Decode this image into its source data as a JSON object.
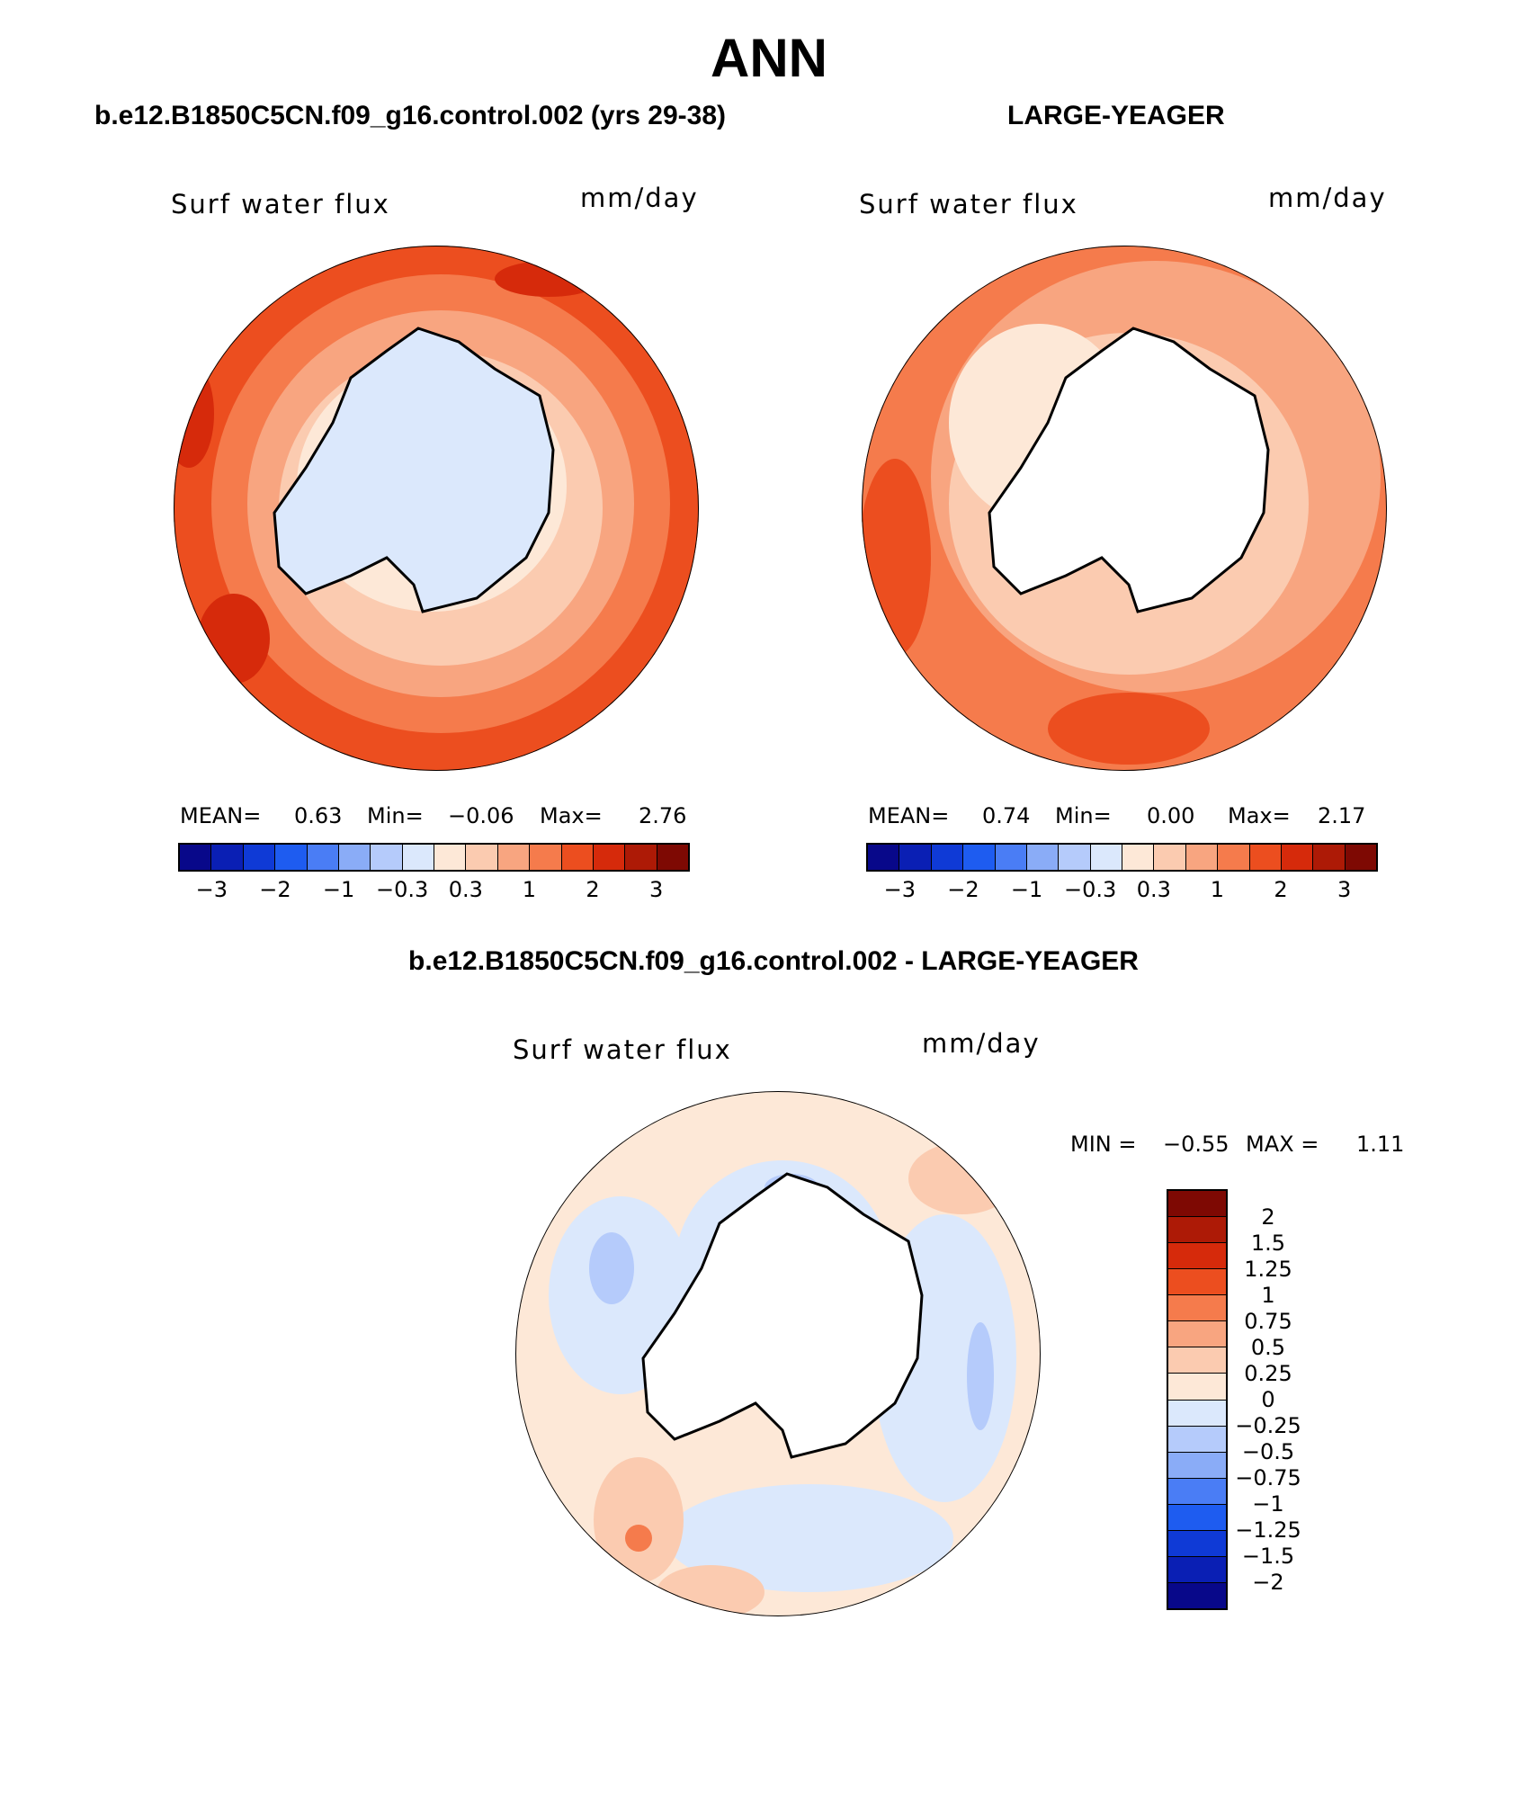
{
  "title": "ANN",
  "panels": {
    "top_left": {
      "heading": "b.e12.B1850C5CN.f09_g16.control.002 (yrs 29-38)",
      "field": "Surf water flux",
      "units": "mm/day",
      "mean_label": "MEAN=",
      "mean": "0.63",
      "min_label": "Min=",
      "min": "−0.06",
      "max_label": "Max=",
      "max": "2.76"
    },
    "top_right": {
      "heading": "LARGE-YEAGER",
      "field": "Surf water flux",
      "units": "mm/day",
      "mean_label": "MEAN=",
      "mean": "0.74",
      "min_label": "Min=",
      "min": "0.00",
      "max_label": "Max=",
      "max": "2.17"
    },
    "bottom": {
      "heading": "b.e12.B1850C5CN.f09_g16.control.002 - LARGE-YEAGER",
      "field": "Surf water flux",
      "units": "mm/day",
      "min_label": "MIN =",
      "min": "−0.55",
      "max_label": "MAX =",
      "max": "1.11"
    }
  },
  "colorbar_top": {
    "colors": [
      "#08088a",
      "#0a1fb4",
      "#0f3ad6",
      "#1e5cf0",
      "#4a7df5",
      "#8aacf7",
      "#b5cbfb",
      "#dbe8fc",
      "#fde8d7",
      "#fbcbb0",
      "#f8a580",
      "#f57b4c",
      "#ec4e1f",
      "#d62a0b",
      "#ad1a06",
      "#7e0903"
    ],
    "ticks": [
      "−3",
      "−2",
      "−1",
      "−0.3",
      "0.3",
      "1",
      "2",
      "3"
    ]
  },
  "colorbar_bottom": {
    "colors": [
      "#7e0903",
      "#ad1a06",
      "#d62a0b",
      "#ec4e1f",
      "#f57b4c",
      "#f8a580",
      "#fbcbb0",
      "#fde8d7",
      "#dbe8fc",
      "#b5cbfb",
      "#8aacf7",
      "#4a7df5",
      "#1e5cf0",
      "#0f3ad6",
      "#0a1fb4",
      "#08088a"
    ],
    "ticks": [
      "2",
      "1.5",
      "1.25",
      "1",
      "0.75",
      "0.5",
      "0.25",
      "0",
      "−0.25",
      "−0.5",
      "−0.75",
      "−1",
      "−1.25",
      "−1.5",
      "−2"
    ]
  }
}
